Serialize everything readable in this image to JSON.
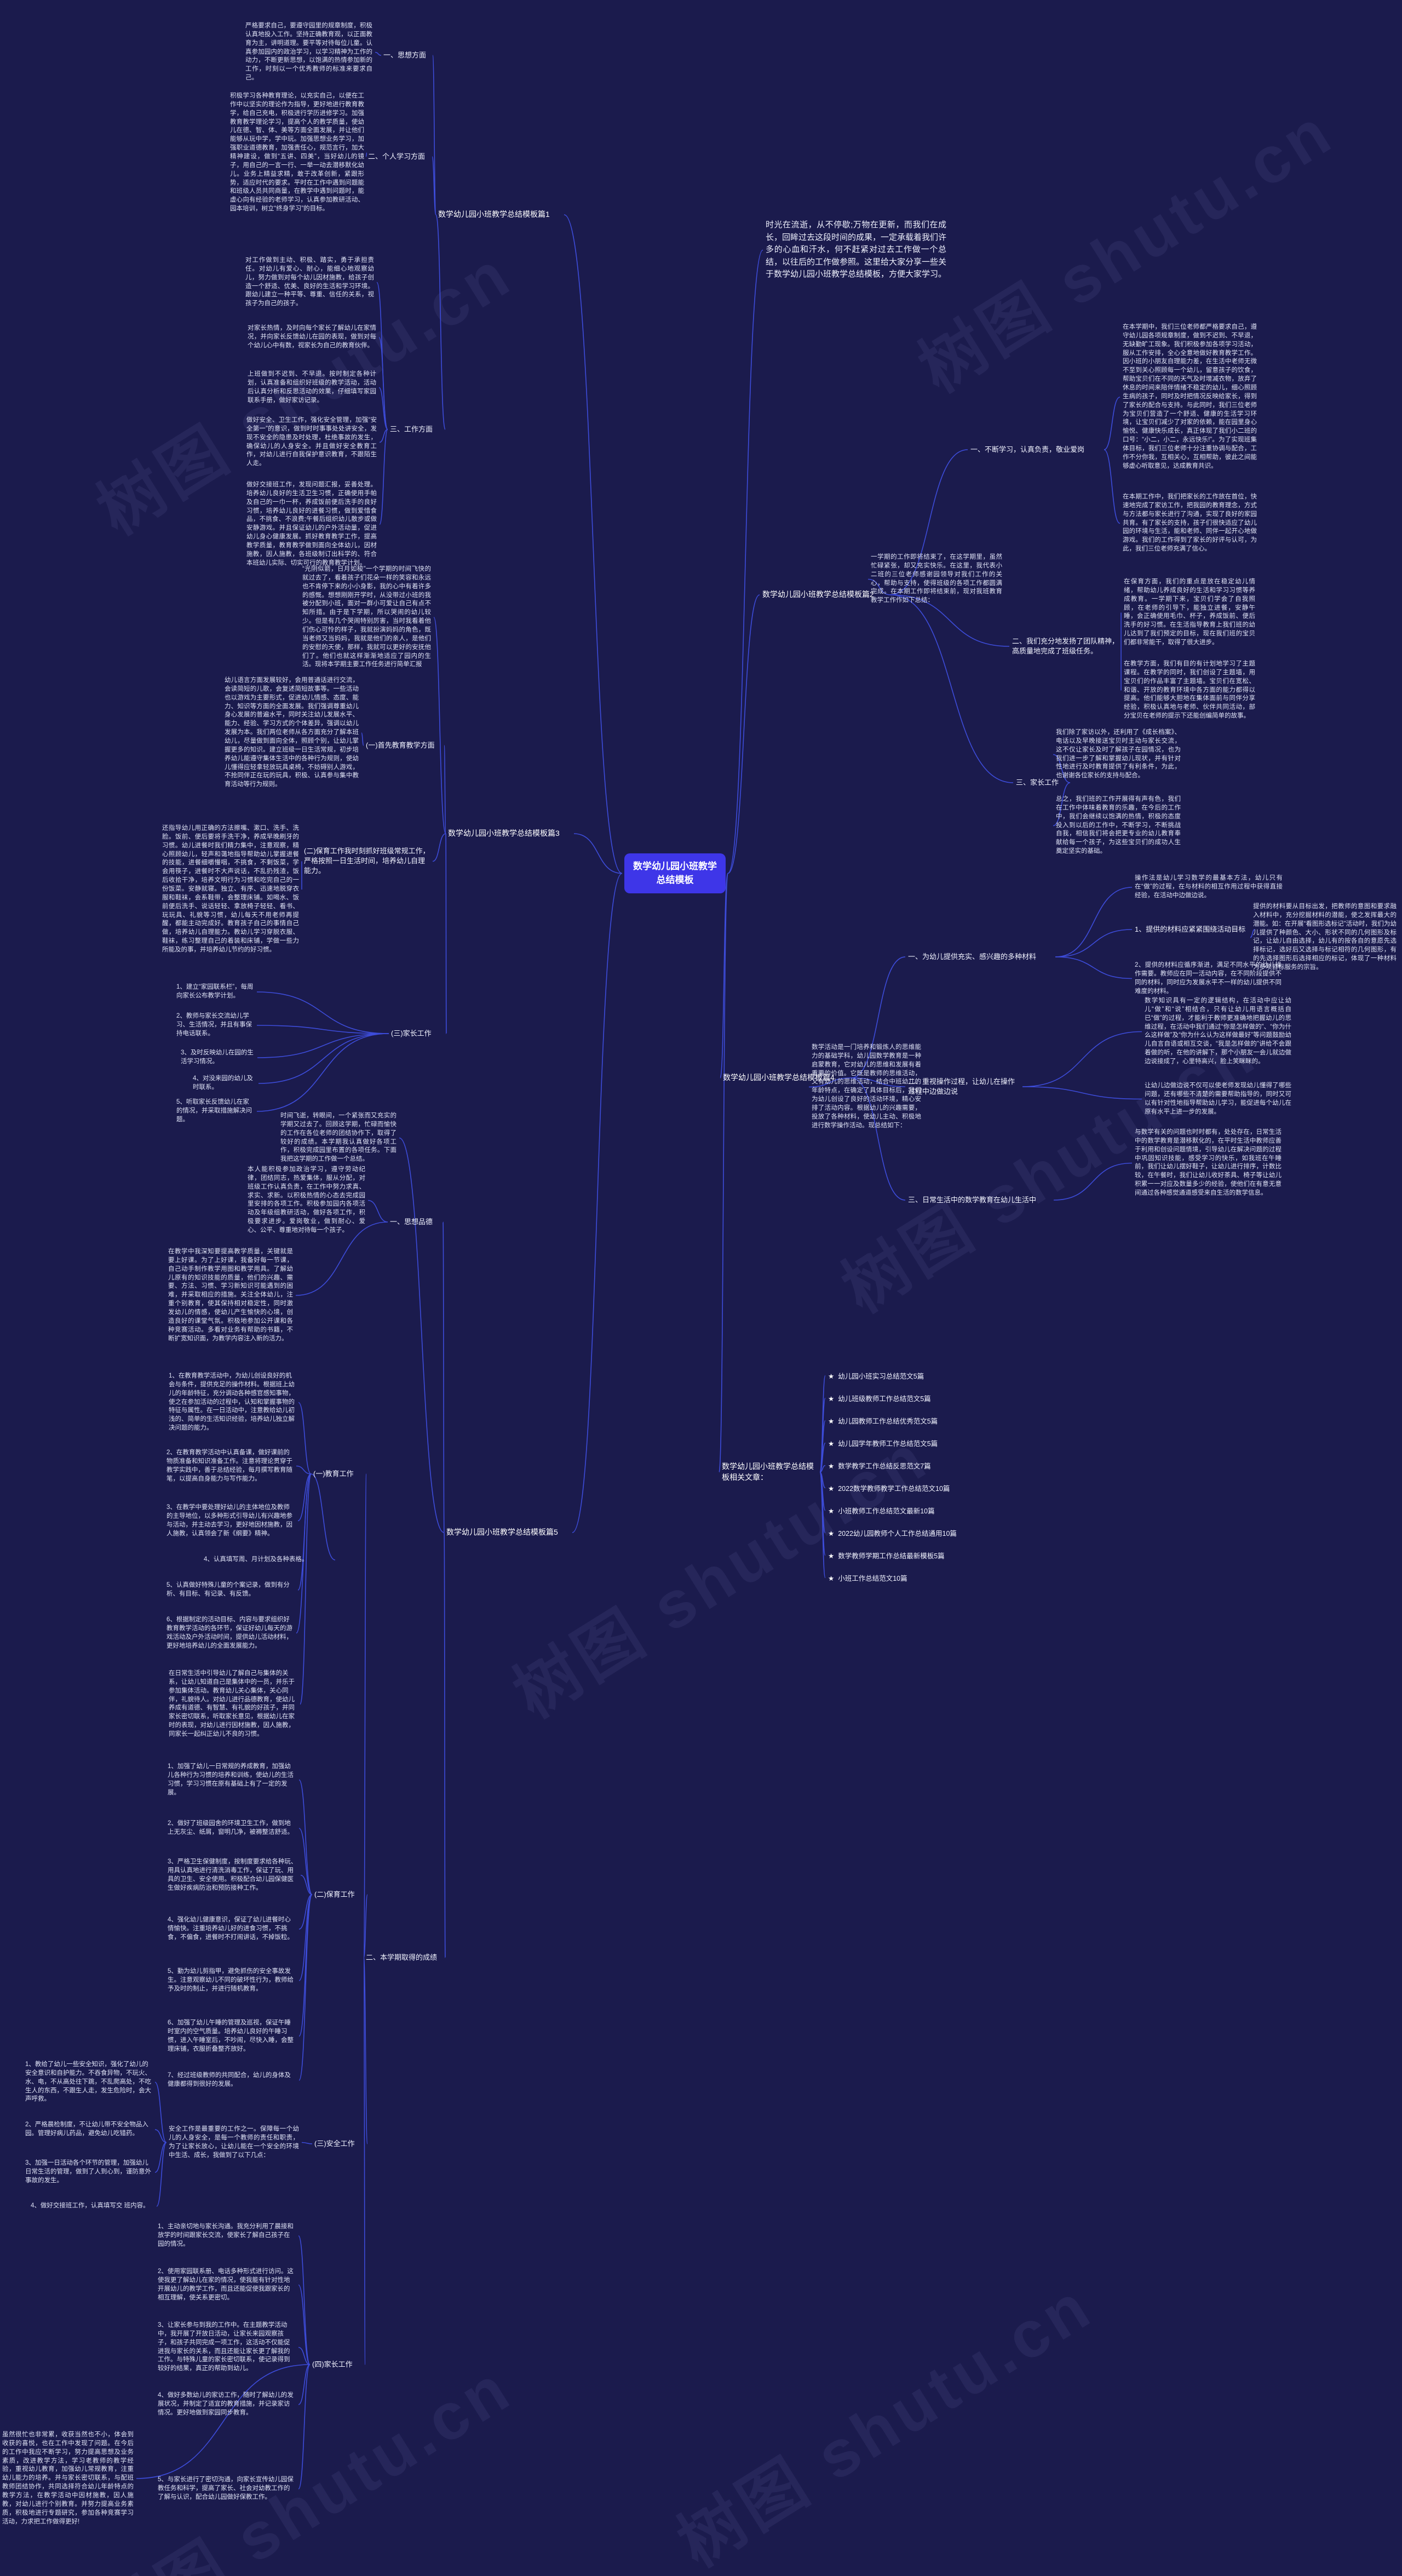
{
  "watermark": {
    "text": "树图 shutu.cn"
  },
  "colors": {
    "background": "#1b1b4d",
    "root_box": "#3e36e8",
    "connector": "#3d4cd9",
    "text": "#ffffff"
  },
  "root": {
    "label": "数学幼儿园小班教学总结模板"
  },
  "intro": "时光在流逝，从不停歇;万物在更新，而我们在成长，回眸过去这段时间的成果，一定承载着我们许多的心血和汗水，何不赶紧对过去工作做一个总结，以往后的工作做参照。这里给大家分享一些关于数学幼儿园小班教学总结模板，方便大家学习。",
  "b1": {
    "title": "数学幼儿园小班教学总结模板篇1",
    "s1": {
      "label": "一、思想方面",
      "p1": "严格要求自己，要遵守园里的规章制度，积极认真地投入工作。坚持正确教育观，以正面教育为主，讲明道理。要平等对待每位儿童。认真参加园内的政治学习，以学习精神为工作的动力，不断更新思想，以饱满的热情参加新的工作，时刻以一个优秀教师的标准来要求自己。"
    },
    "s2": {
      "label": "二、个人学习方面",
      "p1": "积极学习各种教育理论，以充实自己，以便在工作中以坚实的理论作为指导，更好地进行教育教学，给自己充电，积极进行学历进修学习。加强教育教学理论学习，提高个人的教学质量，使幼儿在德、智、体、美等方面全面发展，并让他们能够从玩中学，学中玩。加强思想业务学习，加强职业道德教育，加强责任心，规范言行，加大精神建设，做到“五讲、四美”，当好幼儿的镜子，用自己的一言一行、一举一动去潜移默化幼儿。业务上精益求精，敢于改革创新，紧跟形势，适应时代的要求。平时在工作中遇到问题能和班级人员共同商量，在教学中遇到问题时，能虚心向有经验的老师学习，认真参加教研活动、园本培训，树立“终身学习”的目标。"
    },
    "s3": {
      "label": "三、工作方面",
      "p1": "对工作做到主动、积极、踏实，勇于承担责任。对幼儿有爱心、耐心，能细心地观察幼儿，努力做到对每个幼儿因材施教，给孩子创造一个舒适、优美、良好的生活和学习环境。跟幼儿建立一种平等、尊重、信任的关系，视孩子为自己的孩子。",
      "p2": "对家长热情，及时向每个家长了解幼儿在家情况，并向家长反馈幼儿在园的表现，做到对每个幼儿心中有数，视家长为自己的教育伙伴。",
      "p3": "上班做到不迟到、不早退。按时制定各种计划，认真准备和组织好班级的教学活动，活动后认真分析和反思活动的效果，仔细填写家园联系手册，做好家访记录。",
      "p4": "做好安全、卫生工作，强化安全管理，加强“安全第一”的意识，做到时时事事处处讲安全，发现不安全的隐患及时处理，杜绝事故的发生，确保幼儿的人身安全。并且做好安全教育工作，对幼儿进行自我保护意识教育，不跟陌生人走。",
      "p5": "做好交接班工作，发现问题汇报，妥善处理。培养幼儿良好的生活卫生习惯，正确使用手帕及自己的一巾一杯，养成饭前便后洗手的良好习惯，培养幼儿良好的进餐习惯，做到爱惜食品，不挑食、不浪费;午餐后组织幼儿散步或做安静游戏。并且保证幼儿的户外活动量，促进幼儿身心健康发展。抓好教育教学工作，提高教学质量，教育教学做到面向全体幼儿，因材施教，因人施教，各班级制订出科学的、符合本班幼儿实际、切实可行的教育教学计划。"
    }
  },
  "b2": {
    "title": "数学幼儿园小班教学总结模板篇2",
    "intro": "一学期的工作即将结束了，在这学期里，虽然忙碌紧张，却又充实快乐。在这里，我代表小二班的三位老师感谢园领导对我们工作的关心，帮助与支持，使得班级的各项工作都圆满完成。在本期工作即将结束前，现对我班教育教学工作作如下总结：",
    "s1": {
      "label": "一、不断学习，认真负责，敬业爱岗",
      "p1": "在本学期中，我们三位老师都严格要求自己，遵守幼儿园各项规章制度，做到不迟到、不早退，无缺勤旷工现象。我们积极参加各项学习活动，服从工作安排，全心全意地做好教育教学工作。因小班的小朋友自理能力差，在生活中老师无微不至到关心照顾每一个幼儿，留意孩子的饮食，帮助宝贝们在不同的天气及时增减衣物，放弃了休息的时间来陪伴情绪不稳定的幼儿，细心照顾生病的孩子，同时及时把情况反映给家长，得到了家长的配合与支持。与此同时，我们三位老师为宝贝们营造了一个舒适、健康的生活学习环境，让宝贝们减少了对家的依赖，能在园里身心愉悦、健康快乐成长，真正体现了我们小二班的口号：“小二，小二，永远快乐!”。为了实现班集体目标，我们三位老师十分注重协调与配合，工作不分你我，互相关心，互相帮助，彼此之间能够虚心听取意见，达成教育共识。",
      "p2": "在本期工作中，我们把家长的工作放在首位，快速地完成了家访工作，把我园的教育理念，方式与方法都与家长进行了沟通，实现了良好的家园共育。有了家长的支持，孩子们很快适应了幼儿园的环境与生活，能和老师、同伴一起开心地做游戏。我们的工作得到了家长的好评与认可，为此，我们三位老师充满了信心。"
    },
    "s2": {
      "label": "二、我们充分地发扬了团队精神，高质量地完成了班级任务。",
      "p1": "在保育方面，我们的重点是放在稳定幼儿情绪，帮助幼儿养成良好的生活和学习习惯等养成教育。一学期下来，宝贝们学会了自我照顾，在老师的引导下，能独立进餐，安静午睡，会正确使用毛巾、杯子，养成饭前、便后洗手的好习惯。在生活指导教育上我们班的幼儿达到了我们预定的目标，现在我们班的宝贝们都非常能干，取得了很大进步。",
      "p2": "在教学方面，我们有目的有计划地学习了主题课程。在教学的同时，我们创设了主题墙，用宝贝们的作品丰富了主题墙。宝贝们在宽松、和谐、开放的教育环境中各方面的能力都得以提高。他们能够大胆地在集体面前与同伴分享经验，积极认真地与老师、伙伴共同活动，部分宝贝在老师的提示下还能创编简单的故事。"
    },
    "s3": {
      "label": "三、家长工作",
      "p1": "我们除了家访以外，还利用了《成长档案》、电话以及早晚接送宝贝时主动与家长交流，这不仅让家长及时了解孩子在园情况，也为我们进一步了解和掌握幼儿现状，并有针对性地进行及时教育提供了有利条件，为此，也谢谢各位家长的支持与配合。",
      "p2": "总之，我们班的工作开展得有声有色，我们在工作中体味着教育的乐趣，在今后的工作中，我们会继续以饱满的热情，积极的态度投入到以后的工作中，不断学习，不断挑战自我，相信我们将会把更专业的幼儿教育奉献给每一个孩子，为这些宝贝们的成功人生奠定坚实的基础。"
    }
  },
  "b3": {
    "title": "数学幼儿园小班教学总结模板篇3",
    "intro": "“光阴似箭，日月如梭”一个学期的时间飞快的就过去了，看着孩子们花朵一样的笑容和永远也不肯停下来的小小身影，我的心中有着许多的感慨。想想刚刚开学时，从没带过小班的我被分配到小班，面对一群小可爱让自己有点不知所措。由于是下学期，所以哭闹的幼儿较少。但是有几个哭闹特别厉害，当时我看着他们伤心可怜的样子，我就扮演妈妈的角色，既当老师又当妈妈，我就是他们的亲人，是他们的安慰的天使，那样，我就可以更好的安抚他们了。他们也就这样渐渐地适应了园内的生活。现将本学期主要工作任务进行简单汇报",
    "s1": {
      "label": "(一)首先教育教学方面",
      "p1": "幼儿语言方面发展较好，会用普通话进行交流，会读简短的儿歌，会复述简短故事等。一些活动也以游戏为主要形式，促进幼儿情感、态度、能力、知识等方面的全面发展。我们强调尊重幼儿身心发展的普遍水平，同时关注幼儿发展水平、能力、经验、学习方式的个体差异，强调以幼儿发展为本。我们两位老师从各方面充分了解本班幼儿，尽量做到面向全体，照顾个别，让幼儿掌握更多的知识。建立班级一日生活常规，初步培养幼儿能遵守集体生活中的各种行为规则，使幼儿懂得应轻拿轻放玩具桌椅，不妨碍别人游戏，不抢同伴正在玩的玩具，积极、认真参与集中教育活动等行为规则。"
    },
    "s2": {
      "label": "(二)保育工作我时刻抓好班级常规工作，严格按照一日生活时间，培养幼儿自理能力。",
      "p1": "还指导幼儿用正确的方法擦嘴、漱口、洗手、洗脸。饭前、便后要将手洗干净，养成早晚刷牙的习惯。幼儿进餐时我们精力集中，注意观察，精心照顾幼儿，轻声和蔼地指导帮助幼儿掌握进餐的技能，进餐细嚼慢咽，不挑食，不剩饭菜，学会用筷子，进餐时不大声说话，不乱扔残渣，饭后收拾干净，培养文明行为习惯和吃完自己的一份饭菜。安静就寝。独立、有序、迅速地脱穿衣服和鞋袜，会系鞋带，会整理床铺。如喝水、饭前便后洗手、说话轻轻、拿放椅子轻轻、看书、玩玩具、礼貌等习惯，幼儿每天不用老师再提醒，都能主动完成好。教育孩子自己的事情自己做，培养幼儿自理能力。教幼儿学习穿脱衣服、鞋袜，练习整理自己的着装和床铺，学做一些力所能及的事，并培养幼儿节约的好习惯。"
    },
    "s3": {
      "label": "(三)家长工作",
      "i1": "1、建立“家园联系栏”，每周向家长公布教学计划。",
      "i2": "2、教师与家长交流幼儿学习、生活情况，并且有事保持电话联系。",
      "i3": "3、及时反映幼儿在园的生活学习情况。",
      "i4": "4、对没来园的幼儿及时联系。",
      "i5": "5、听取家长反馈幼儿在家的情况，并采取措施解决问题。"
    }
  },
  "b4": {
    "title": "数学幼儿园小班教学总结模板篇4",
    "intro": "数学活动是一门培养和锻炼人的思维能力的基础学科，幼儿园数学教育是一种启蒙教育，它对幼儿的思维和发展有着重要的价值。它既是教师的思维活动，又有幼儿的思维活动，结合中班幼儿的年龄特点，在确定了具体目标后，我们为幼儿创设了良好的活动环境，精心安排了活动内容。根据幼儿的兴趣需要，投放了各种材料，使幼儿主动、积极地进行数学操作活动。现总结如下：",
    "s1": {
      "label": "一、为幼儿提供充实、感兴趣的多种材料",
      "p0": "操作法是幼儿学习数学的最基本方法，幼儿只有在“做”的过程，在与材料的相互作用过程中获得直接经验，在活动中边做边说。",
      "sub1": {
        "label": "1、提供的材料应紧紧围绕活动目标",
        "p": "提供的材料要从目标出发，把教师的意图和要求融入材料中，充分挖掘材料的潜能，使之发挥最大的潜能。如：在开展“看图形选标记”活动时，我们为幼儿提供了种颜色、大小、形状不同的几何图形及标记，让幼儿自由选择，幼儿有的按各自的意愿先选择标记，选好后又选择与标记相符的几何图形，有的先选择图形后选择相应的标记，体现了一种材料为多项目标服务的宗旨。"
      },
      "sub2": "2、提供的材料应循序渐进，满足不同水平的幼儿操作需要。教师应在同一活动内容，在不同阶段提供不同的材料，同时应为发展水平不一样的幼儿提供不同难度的材料。"
    },
    "s2": {
      "label": "二、重视操作过程，让幼儿在操作过程中边做边说",
      "p1": "数学知识具有一定的逻辑结构，在活动中应让幼儿“做”和“说”相结合，只有让幼儿用语言概括自已“做”的过程，才能利于教师更准确地把握幼儿的思维过程，在活动中我们通过“你是怎样做的”、“你为什么这样做”及“你为什么认为这样做最好”等问题鼓励幼儿自言自语或相互交谈，“我是怎样做的”讲给不会跟着做的听，在他的讲解下，那个小朋友一会儿就边做边说接成了，心里特高兴，脸上笑眯眯的。",
      "p2": "让幼儿边做边说不仅可以使老师发现幼儿懂得了哪些问题，还有哪些不清楚的需要帮助指导的，同时又可以有针对性地指导帮助幼儿学习，能促进每个幼儿在原有水平上进一步的发展。"
    },
    "s3": {
      "label": "三、日常生活中的数学教育在幼儿生活中",
      "p": "与数学有关的问题也时时都有，处处存在，日常生活中的数学教育是潜移默化的，在平时生活中教师应善于利用和创设问题情境，引导幼儿在解决问题的过程中巩固知识技能，感受学习的快乐，如我班在午睡前，我们让幼儿摆好鞋子，让幼儿进行排序，计数比较，在午餐时，我们让幼儿收好茶具、椅子等让幼儿积累一一对应及数量多少的经验，使他们在有意无意间通过各种感觉通道感受来自生活的数学信息。"
    }
  },
  "b5": {
    "title": "数学幼儿园小班教学总结模板篇5",
    "intro": "时间飞逝，转眼间，一个紧张而又充实的学期又过去了。回顾这学期，忙碌而愉快的工作在各位老师的团结协作下，取得了较好的成绩。本学期我认真做好各项工作，积极完成园里布置的各项任务。下面我把这学期的工作做一个总结。",
    "s1": {
      "label": "一、思想品德",
      "p1": "本人能积极参加政治学习，遵守劳动纪律，团结同志，热爱集体，服从分配，对班级工作认真负责，在工作中努力求真、求实、求新。以积极热情的心态去完成园里安排的各项工作。积极参加园内各项活动及年级组教研活动，做好各项工作，积极要求进步。爱岗敬业，做到耐心、爱心、公平、尊重地对待每一个孩子。",
      "p2": "在教学中我深知要提高教学质量，关键就是要上好课。为了上好课，我备好每一节课，自己动手制作教学用图和教学用具。了解幼儿原有的知识技能的质量，他们的兴趣、需要、方法、习惯、学习新知识可能遇到的困难，并采取相应的措施。关注全体幼儿，注重个别教育，使其保持相对稳定性，同时激发幼儿的情感，使幼儿产生愉快的心境，创造良好的课堂气氛。积极地参加公开课和各种竞赛活动。多看对业务有帮助的书籍，不断扩宽知识面，为教学内容注入新的活力。"
    },
    "s2": {
      "label": "二、本学期取得的成绩",
      "sec1": {
        "label": "(一)教育工作",
        "i1": "1、在教育教学活动中，为幼儿创设良好的机会与条件，提供充足的操作材料。根据班上幼儿的年龄特征，充分调动各种感官感知事物，使之在参加活动的过程中，认知和掌握事物的特征与属性。在一日活动中，注意教给幼儿初浅的、简单的生活知识经验，培养幼儿独立解决问题的能力。",
        "i2": "2、在教育教学活动中认真备课，做好课前的物质准备和知识准备工作。注意将理论贯穿于教学实践中，善于总结经验，每月撰写教育随笔，以提高自身能力与写作能力。",
        "i3": "3、在教学中要处理好幼儿的主体地位及教师的主导地位，以多种形式引导幼儿有兴趣地参与活动，并主动去学习，更好地因材施教，因人施教，认真领会了新《纲要》精神。",
        "i4": "4、认真填写周、月计划及各种表格。",
        "i5": "5、认真做好特殊儿童的个案记录，做到有分析、有目标、有记录、有反馈。",
        "i6": "6、根据制定的活动目标、内容与要求组织好教育教学活动的各环节，保证好幼儿每天的游戏活动及户外活动时间，提供幼儿活动材料，更好地培养幼儿的全面发展能力。",
        "i7": "在日常生活中引导幼儿了解自己与集体的关系，让幼儿知道自己是集体中的一员，并乐于参加集体活动。教育幼儿关心集体，关心同伴，礼貌待人。对幼儿进行品德教育，使幼儿养成有道德、有智慧、有礼貌的好孩子，并同家长密切联系，听取家长意见，根据幼儿在家时的表现，对幼儿进行因材施教，因人施教，同家长一起纠正幼儿不良的习惯。"
      },
      "sec2": {
        "label": "(二)保育工作",
        "i1": "1、加强了幼儿一日常规的养成教育，加强幼儿各种行为习惯的培养和训练，使幼儿的生活习惯，学习习惯在原有基础上有了一定的发展。",
        "i2": "2、做好了班级园舍的环境卫生工作，做到地上无灰尘、纸屑，窗明几净，被褥整洁舒适。",
        "i3": "3、严格卫生保健制度，按制度要求给各种玩、用具认真地进行清洗消毒工作，保证了玩、用具的卫生、安全使用。积极配合幼儿园保健医生做好疾病防治和预防接种工作。",
        "i4": "4、强化幼儿健康意识，保证了幼儿进餐时心情愉快。注重培养幼儿好的进食习惯，不挑食，不偏食，进餐时不打闹讲话，不掉饭粒。",
        "i5": "5、勤为幼儿剪指甲，避免抓伤的安全事故发生。注意观察幼儿不同的破坏性行为，教师给予及时的制止，并进行随机教育。",
        "i6": "6、加强了幼儿午睡的管理及巡视，保证午睡时室内的空气质量。培养幼儿良好的午睡习惯，进入午睡室后，不吵闹，尽快入睡，会整理床铺，衣服折叠整齐放好。",
        "i7": "7、经过班级教师的共同配合，幼儿的身体及健康都得到很好的发展。"
      },
      "sec3": {
        "label": "(三)安全工作",
        "p": "安全工作是最重要的工作之一。保障每一个幼儿的人身安全，是每一个教师的责任和职责，为了让家长放心，让幼儿能在一个安全的环境中生活、成长，我做到了以下几点：",
        "i1": "1、教给了幼儿一些安全知识，强化了幼儿的安全意识和自护能力。不吞食异物，不玩火、水、电，不从高处往下跳，不乱爬高处，不吃生人的东西，不跟生人走，发生危险时，会大声呼救。",
        "i2": "2、严格晨检制度，不让幼儿带不安全物品入园。管理好病儿药品，避免幼儿吃错药。",
        "i3": "3、加强一日活动各个环节的管理，加强幼儿日常生活的管理，做到了人到心到，谨防意外事故的发生。",
        "i4": "4、做好交接班工作，认真填写交 班内容。"
      },
      "sec4": {
        "label": "(四)家长工作",
        "i1": "1、主动亲切地与家长沟通。我充分利用了晨接和放学的时间跟家长交流，使家长了解自己孩子在园的情况。",
        "i2": "2、使用家园联系册、电话多种形式进行访问。这使我更了解幼儿在家的情况，使我能有针对性地开展幼儿的教学工作，而且还能促使我跟家长的相互理解，使关系更密切。",
        "i3": "3、让家长参与到我的工作中。在主题教学活动中，我开展了开放日活动，让家长来园观察孩子，和孩子共同完成一项工作，这活动不仅能促进我与家长的关系，而且还能让家长更了解我的工作。与特殊儿童的家长密切联系，使记录得到较好的结果，真正的帮助到幼儿。",
        "i4": "4、做好多数幼儿的家访工作，随时了解幼儿的发展状况，并制定了适宜的教育措施，并记录家访情况。更好地做到家园同步教育。",
        "i5": "5、与家长进行了密切沟通，向家长宣传幼儿园保教任务和科学，提高了家长、社会对幼教工作的了解与认识，配合幼儿园做好保教工作。",
        "closing": "虽然很忙也非常累，收获当然也不小，体会到收获的喜悦，也在工作中发现了问题。在今后的工作中我应不断学习，努力提高思想及业务素质，改进教学方法，学习老教师的教学经验，重视幼儿教育，加强幼儿常规教育，注重幼儿能力的培养。并与家长密切联系，与配班教师团结协作，共同选择符合幼儿年龄特点的教学方法，在教学活动中因材施教，因人施教，对幼儿进行个别教育。并努力提高业务素质，积极地进行专题研究，参加各种竞赛学习活动，力求把工作做得更好!"
      }
    }
  },
  "related": {
    "title": "数学幼儿园小班教学总结模板相关文章：",
    "bullet": "★",
    "items": [
      "幼儿园小班实习总结范文5篇",
      "幼儿班级教师工作总结范文5篇",
      "幼儿园教师工作总结优秀范文5篇",
      "幼儿园学年教师工作总结范文5篇",
      "数学教学工作总结反思范文7篇",
      "2022数学教师教学工作总结范文10篇",
      "小班教师工作总结范文最新10篇",
      "2022幼儿园教师个人工作总结通用10篇",
      "数学教师学期工作总结最新模板5篇",
      "小班工作总结范文10篇"
    ]
  }
}
